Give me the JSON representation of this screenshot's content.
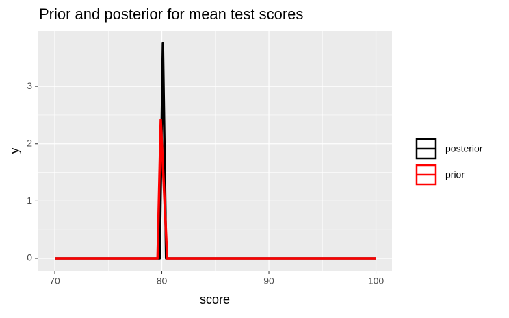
{
  "chart_data": {
    "type": "line",
    "title": "Prior and posterior for mean test scores",
    "x_label": "score",
    "y_label": "y",
    "xlim": [
      68.4,
      101.5
    ],
    "xticks": [
      70,
      80,
      90,
      100
    ],
    "ylim": [
      -0.227,
      3.97
    ],
    "yticks": [
      0,
      1,
      2,
      3
    ],
    "grid": true,
    "legend": "right",
    "series": [
      {
        "name": "posterior",
        "color": "#000000",
        "x": [
          70,
          79.8,
          80.1,
          80.4,
          100
        ],
        "values": [
          0,
          0,
          3.75,
          0,
          0
        ]
      },
      {
        "name": "prior",
        "color": "#ff0000",
        "x": [
          70,
          79.6,
          79.9,
          80.5,
          100
        ],
        "values": [
          0,
          0,
          2.42,
          0,
          0
        ]
      }
    ]
  }
}
